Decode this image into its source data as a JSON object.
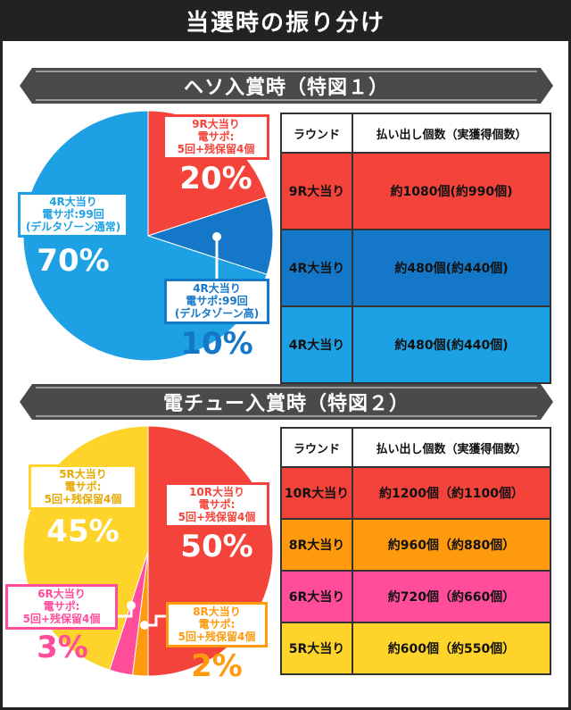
{
  "title": "当選時の振り分け",
  "colors": {
    "red": "#f4433a",
    "blue_dark": "#1477c7",
    "blue_light": "#1da1e4",
    "yellow": "#fed42a",
    "orange": "#ff9a0f",
    "pink": "#ff4d9b",
    "banner": "#4a4a4a"
  },
  "section1": {
    "banner": "ヘソ入賞時（特図１）",
    "table": {
      "headers": [
        "ラウンド",
        "払い出し個数（実獲得個数）"
      ],
      "rows": [
        {
          "round": "9R大当り",
          "payout": "約1080個(約990個)",
          "color": "#f4433a"
        },
        {
          "round": "4R大当り",
          "payout": "約480個(約440個)",
          "color": "#1477c7"
        },
        {
          "round": "4R大当り",
          "payout": "約480個(約440個)",
          "color": "#1da1e4"
        }
      ]
    }
  },
  "section2": {
    "banner": "電チュー入賞時（特図２）",
    "table": {
      "headers": [
        "ラウンド",
        "払い出し個数（実獲得個数）"
      ],
      "rows": [
        {
          "round": "10R大当り",
          "payout": "約1200個（約1100個）",
          "color": "#f4433a"
        },
        {
          "round": "8R大当り",
          "payout": "約960個（約880個）",
          "color": "#ff9a0f"
        },
        {
          "round": "6R大当り",
          "payout": "約720個（約660個）",
          "color": "#ff4d9b"
        },
        {
          "round": "5R大当り",
          "payout": "約600個（約550個）",
          "color": "#fed42a"
        }
      ]
    }
  },
  "chart_data": [
    {
      "type": "pie",
      "title": "ヘソ入賞時（特図１）",
      "slices": [
        {
          "label": [
            "9R大当り",
            "電サポ:",
            "5回+残保留4個"
          ],
          "value": 20,
          "display": "20%",
          "color": "#f4433a"
        },
        {
          "label": [
            "4R大当り",
            "電サポ:99回",
            "(デルタゾーン高)"
          ],
          "value": 10,
          "display": "10%",
          "color": "#1477c7"
        },
        {
          "label": [
            "4R大当り",
            "電サポ:99回",
            "(デルタゾーン通常)"
          ],
          "value": 70,
          "display": "70%",
          "color": "#1da1e4"
        }
      ]
    },
    {
      "type": "pie",
      "title": "電チュー入賞時（特図２）",
      "slices": [
        {
          "label": [
            "10R大当り",
            "電サポ:",
            "5回+残保留4個"
          ],
          "value": 50,
          "display": "50%",
          "color": "#f4433a"
        },
        {
          "label": [
            "8R大当り",
            "電サポ:",
            "5回+残保留4個"
          ],
          "value": 2,
          "display": "2%",
          "color": "#ff9a0f"
        },
        {
          "label": [
            "6R大当り",
            "電サポ:",
            "5回+残保留4個"
          ],
          "value": 3,
          "display": "3%",
          "color": "#ff4d9b"
        },
        {
          "label": [
            "5R大当り",
            "電サポ:",
            "5回+残保留4個"
          ],
          "value": 45,
          "display": "45%",
          "color": "#fed42a"
        }
      ]
    }
  ]
}
